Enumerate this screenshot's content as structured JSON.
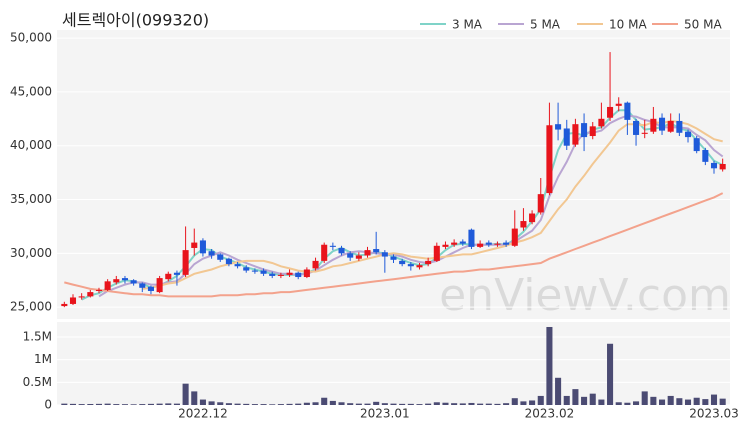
{
  "chart_data": {
    "type": "candlestick",
    "title": "세트렉아이(099320)",
    "watermark": "enViewV.com",
    "categories": [
      null,
      null,
      null,
      null,
      null,
      null,
      null,
      null,
      null,
      null,
      null,
      null,
      null,
      null,
      null,
      null,
      "2022.12",
      null,
      null,
      null,
      null,
      null,
      null,
      null,
      null,
      null,
      null,
      null,
      null,
      null,
      null,
      null,
      null,
      null,
      null,
      null,
      null,
      "2023.01",
      null,
      null,
      null,
      null,
      null,
      null,
      null,
      null,
      null,
      null,
      null,
      null,
      null,
      null,
      null,
      null,
      null,
      null,
      "2023.02",
      null,
      null,
      null,
      null,
      null,
      null,
      null,
      null,
      null,
      null,
      null,
      null,
      null,
      null,
      null,
      null,
      null,
      null,
      "2023.03",
      null
    ],
    "open": [
      25100,
      25300,
      25900,
      26000,
      26500,
      26600,
      27300,
      27700,
      27500,
      27200,
      26900,
      26400,
      27600,
      28200,
      28000,
      30500,
      31200,
      30200,
      29900,
      29500,
      29000,
      28700,
      28400,
      28400,
      28100,
      27900,
      28000,
      28200,
      27800,
      28600,
      29300,
      30700,
      30500,
      30000,
      29500,
      29800,
      30400,
      30100,
      29700,
      29300,
      29000,
      28700,
      29000,
      29300,
      30600,
      30800,
      31100,
      32200,
      30600,
      31000,
      30800,
      31000,
      30700,
      32400,
      32900,
      33800,
      35600,
      42000,
      41600,
      40100,
      42100,
      40900,
      41800,
      42600,
      43700,
      44000,
      42300,
      41100,
      41300,
      42600,
      41300,
      42300,
      41300,
      40700,
      39600,
      38400,
      37800
    ],
    "high": [
      25500,
      26200,
      26300,
      26600,
      26800,
      27600,
      27900,
      27900,
      27600,
      27300,
      27000,
      27900,
      28300,
      28400,
      32500,
      32300,
      31400,
      30400,
      30000,
      29600,
      29200,
      28900,
      28600,
      28600,
      28300,
      28200,
      28500,
      28300,
      28700,
      29600,
      31000,
      31000,
      30700,
      30200,
      30100,
      30600,
      32000,
      30300,
      29900,
      29500,
      29200,
      29100,
      29600,
      31000,
      31100,
      31300,
      31300,
      32300,
      31200,
      31200,
      31100,
      31200,
      34000,
      34200,
      34000,
      37000,
      44000,
      44000,
      42400,
      42500,
      43000,
      42200,
      44000,
      48700,
      44500,
      44100,
      42500,
      42400,
      43600,
      43000,
      43000,
      43000,
      41500,
      40900,
      39800,
      38600,
      38800
    ],
    "low": [
      25000,
      25200,
      25700,
      25900,
      26300,
      26500,
      27100,
      27200,
      27000,
      26400,
      26200,
      26300,
      27400,
      27000,
      27800,
      29800,
      29700,
      29500,
      29200,
      28800,
      28600,
      28200,
      28100,
      27900,
      27700,
      27700,
      27800,
      27600,
      27700,
      28400,
      29100,
      30300,
      29800,
      29300,
      29300,
      29600,
      29900,
      28200,
      29100,
      28800,
      28400,
      28500,
      28800,
      29200,
      30400,
      30600,
      30700,
      30400,
      30500,
      30600,
      30600,
      30600,
      30600,
      32100,
      32700,
      33600,
      35400,
      40500,
      39600,
      39900,
      39500,
      40600,
      41600,
      42300,
      43200,
      41000,
      40000,
      40700,
      41100,
      41000,
      41200,
      40900,
      40300,
      39300,
      38200,
      37400,
      37600
    ],
    "close": [
      25300,
      25900,
      26000,
      26400,
      26600,
      27400,
      27600,
      27500,
      27200,
      26800,
      26500,
      27700,
      28100,
      28000,
      30300,
      31000,
      30000,
      29800,
      29400,
      29000,
      28800,
      28400,
      28300,
      28100,
      27900,
      28000,
      28200,
      27800,
      28500,
      29300,
      30800,
      30600,
      30000,
      29600,
      29800,
      30300,
      30100,
      29700,
      29400,
      29000,
      28800,
      28900,
      29300,
      30700,
      30800,
      31000,
      30900,
      30600,
      30900,
      30800,
      30900,
      30800,
      32300,
      33000,
      33700,
      35500,
      41900,
      41500,
      40000,
      42000,
      40800,
      41800,
      42500,
      43600,
      43900,
      42400,
      41000,
      41200,
      42500,
      41400,
      42300,
      41200,
      40800,
      39500,
      38500,
      37900,
      38300
    ],
    "up_color": "#e8141c",
    "down_color": "#1f5ad9",
    "ylim": [
      23900,
      50750
    ],
    "yticks": [
      {
        "value": 25000,
        "label": "25,000"
      },
      {
        "value": 30000,
        "label": "30,000"
      },
      {
        "value": 35000,
        "label": "35,000"
      },
      {
        "value": 40000,
        "label": "40,000"
      },
      {
        "value": 45000,
        "label": "45,000"
      },
      {
        "value": 50000,
        "label": "50,000"
      }
    ],
    "ma": [
      {
        "name": "3 MA",
        "color": "#7fd3c8",
        "values": [
          null,
          null,
          25700,
          26100,
          26300,
          26800,
          27200,
          27500,
          27400,
          27200,
          26800,
          27000,
          27400,
          27900,
          28800,
          29800,
          30400,
          30300,
          29700,
          29400,
          29100,
          28700,
          28500,
          28300,
          28100,
          28000,
          28000,
          28000,
          28200,
          28500,
          29500,
          30200,
          30500,
          30100,
          29800,
          29900,
          30100,
          30000,
          29700,
          29400,
          29100,
          28900,
          29000,
          29600,
          30300,
          30800,
          30900,
          30800,
          30800,
          30800,
          30900,
          30800,
          31300,
          32000,
          33000,
          34100,
          37000,
          39600,
          41100,
          41200,
          40900,
          41500,
          41700,
          42600,
          43300,
          43300,
          42400,
          41500,
          41600,
          41700,
          42100,
          41600,
          41400,
          40500,
          39600,
          38600,
          38200
        ]
      },
      {
        "name": "5 MA",
        "color": "#b9a5d2",
        "values": [
          null,
          null,
          null,
          null,
          26000,
          26500,
          26800,
          27100,
          27300,
          27300,
          27100,
          27100,
          27300,
          27400,
          28100,
          29000,
          29500,
          29800,
          30100,
          29800,
          29400,
          29100,
          28800,
          28500,
          28300,
          28100,
          28100,
          28000,
          28100,
          28400,
          28900,
          29400,
          29800,
          30100,
          30200,
          30100,
          30000,
          29900,
          29900,
          29700,
          29400,
          29200,
          29100,
          29300,
          29700,
          30100,
          30500,
          30800,
          30800,
          30800,
          30800,
          30800,
          31100,
          31600,
          32100,
          33100,
          35300,
          37100,
          38500,
          40200,
          41200,
          41200,
          41400,
          42100,
          42500,
          42800,
          42700,
          42400,
          42200,
          41700,
          41700,
          41700,
          41600,
          41000,
          40500,
          39600,
          39000
        ]
      },
      {
        "name": "10 MA",
        "color": "#f2c792",
        "values": [
          null,
          null,
          null,
          null,
          null,
          null,
          null,
          null,
          null,
          26700,
          26800,
          27000,
          27200,
          27300,
          27700,
          28100,
          28300,
          28500,
          28800,
          29000,
          29200,
          29300,
          29300,
          29300,
          29100,
          28800,
          28600,
          28400,
          28300,
          28300,
          28500,
          28800,
          28900,
          29100,
          29300,
          29500,
          29700,
          29900,
          30000,
          29900,
          29700,
          29600,
          29500,
          29600,
          29700,
          29800,
          29900,
          29900,
          30100,
          30300,
          30500,
          30700,
          31000,
          31200,
          31500,
          31900,
          33000,
          34100,
          35000,
          36200,
          37200,
          38300,
          39300,
          40300,
          41400,
          42000,
          42000,
          41900,
          42200,
          42100,
          42300,
          42200,
          42000,
          41600,
          41100,
          40600,
          40400
        ]
      },
      {
        "name": "50 MA",
        "color": "#f3a28c",
        "values": [
          27300,
          27100,
          26900,
          26700,
          26600,
          26500,
          26400,
          26300,
          26200,
          26200,
          26100,
          26100,
          26000,
          26000,
          26000,
          26000,
          26000,
          26000,
          26100,
          26100,
          26100,
          26200,
          26200,
          26300,
          26300,
          26400,
          26400,
          26500,
          26600,
          26700,
          26800,
          26900,
          27000,
          27100,
          27200,
          27300,
          27400,
          27500,
          27600,
          27700,
          27800,
          27900,
          28000,
          28100,
          28200,
          28300,
          28300,
          28400,
          28500,
          28500,
          28600,
          28700,
          28800,
          28900,
          29000,
          29100,
          29500,
          29800,
          30100,
          30400,
          30700,
          31000,
          31300,
          31600,
          31900,
          32200,
          32500,
          32800,
          33100,
          33400,
          33700,
          34000,
          34300,
          34600,
          34900,
          35200,
          35600
        ]
      }
    ],
    "volume": {
      "color": "#4b4b73",
      "ylim": [
        0,
        1830000
      ],
      "yticks": [
        0,
        {
          "value": 500000,
          "label": "0.5M"
        },
        {
          "value": 1000000,
          "label": "1M"
        },
        {
          "value": 1500000,
          "label": "1.5M"
        }
      ],
      "values": [
        30000,
        25000,
        20000,
        22000,
        25000,
        30000,
        20000,
        18000,
        15000,
        20000,
        25000,
        30000,
        35000,
        30000,
        470000,
        300000,
        120000,
        80000,
        60000,
        40000,
        30000,
        25000,
        20000,
        20000,
        15000,
        20000,
        25000,
        30000,
        50000,
        60000,
        160000,
        90000,
        60000,
        40000,
        30000,
        30000,
        70000,
        40000,
        30000,
        25000,
        25000,
        20000,
        30000,
        60000,
        50000,
        40000,
        35000,
        45000,
        30000,
        30000,
        25000,
        40000,
        150000,
        80000,
        100000,
        200000,
        1720000,
        600000,
        200000,
        350000,
        180000,
        250000,
        120000,
        1350000,
        60000,
        50000,
        80000,
        300000,
        180000,
        120000,
        200000,
        150000,
        120000,
        160000,
        130000,
        230000,
        140000
      ]
    }
  }
}
